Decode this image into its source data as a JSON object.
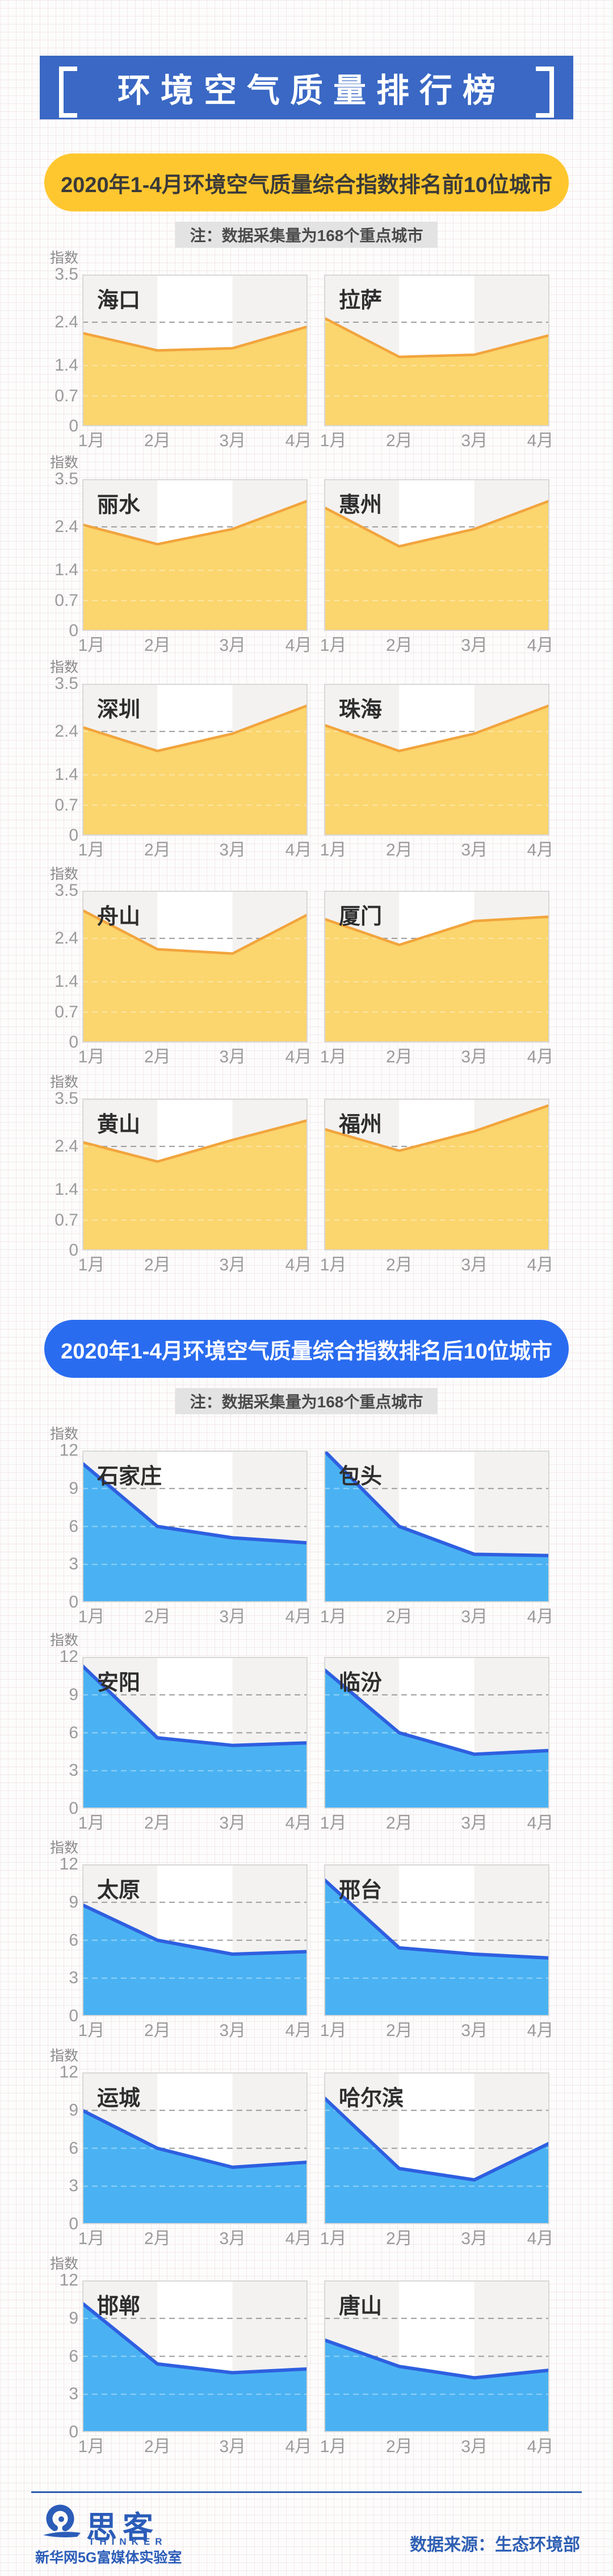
{
  "header": {
    "title": "环境空气质量排行榜"
  },
  "sections": [
    {
      "banner": "2020年1-4月环境空气质量综合指数排名前10位城市",
      "note": "注：数据采集量为168个重点城市",
      "theme": {
        "pill_bg": "#FFC72F",
        "pill_fg": "#3A3A3A",
        "area": "#FBD56D",
        "line": "#F2A43D"
      }
    },
    {
      "banner": "2020年1-4月环境空气质量综合指数排名后10位城市",
      "note": "注：数据采集量为168个重点城市",
      "theme": {
        "pill_bg": "#2A6CF0",
        "pill_fg": "#FFFFFF",
        "area": "#4AB2F2",
        "line": "#2E5FE0"
      }
    }
  ],
  "chart_data": {
    "type": "area",
    "months": [
      "1月",
      "2月",
      "3月",
      "4月"
    ],
    "sections": [
      {
        "name": "排名前10位城市",
        "ylabel": "指数",
        "ylim": [
          0,
          3.5
        ],
        "yticks": [
          "3.5",
          "2.4",
          "1.4",
          "0.7",
          "0"
        ],
        "grid_values": [
          2.4,
          1.4,
          0.7
        ],
        "series": [
          {
            "city": "海口",
            "values": [
              2.15,
              1.75,
              1.8,
              2.3
            ]
          },
          {
            "city": "拉萨",
            "values": [
              2.5,
              1.6,
              1.65,
              2.1
            ]
          },
          {
            "city": "丽水",
            "values": [
              2.45,
              2.0,
              2.35,
              3.0
            ]
          },
          {
            "city": "惠州",
            "values": [
              2.85,
              1.95,
              2.35,
              3.0
            ]
          },
          {
            "city": "深圳",
            "values": [
              2.5,
              1.95,
              2.35,
              3.0
            ]
          },
          {
            "city": "珠海",
            "values": [
              2.55,
              1.95,
              2.35,
              3.0
            ]
          },
          {
            "city": "舟山",
            "values": [
              3.05,
              2.15,
              2.05,
              2.95
            ]
          },
          {
            "city": "厦门",
            "values": [
              2.85,
              2.25,
              2.8,
              2.9
            ]
          },
          {
            "city": "黄山",
            "values": [
              2.5,
              2.05,
              2.55,
              3.0
            ]
          },
          {
            "city": "福州",
            "values": [
              2.8,
              2.3,
              2.75,
              3.35
            ]
          }
        ]
      },
      {
        "name": "排名后10位城市",
        "ylabel": "指数",
        "ylim": [
          0,
          12
        ],
        "yticks": [
          "12",
          "9",
          "6",
          "3",
          "0"
        ],
        "grid_values": [
          9,
          6,
          3
        ],
        "series": [
          {
            "city": "石家庄",
            "values": [
              11.0,
              6.0,
              5.1,
              4.7
            ]
          },
          {
            "city": "包头",
            "values": [
              12.0,
              6.0,
              3.8,
              3.7
            ]
          },
          {
            "city": "安阳",
            "values": [
              11.3,
              5.6,
              5.0,
              5.2
            ]
          },
          {
            "city": "临汾",
            "values": [
              11.0,
              6.0,
              4.3,
              4.6
            ]
          },
          {
            "city": "太原",
            "values": [
              8.8,
              6.0,
              4.9,
              5.1
            ]
          },
          {
            "city": "邢台",
            "values": [
              10.8,
              5.4,
              4.9,
              4.6
            ]
          },
          {
            "city": "运城",
            "values": [
              9.0,
              6.0,
              4.5,
              4.9
            ]
          },
          {
            "city": "哈尔滨",
            "values": [
              10.0,
              4.4,
              3.5,
              6.4
            ]
          },
          {
            "city": "邯郸",
            "values": [
              10.2,
              5.4,
              4.7,
              5.0
            ]
          },
          {
            "city": "唐山",
            "values": [
              7.3,
              5.2,
              4.3,
              4.9
            ]
          }
        ]
      }
    ]
  },
  "footer": {
    "logo_text": "思客",
    "logo_subtext": "THINKER",
    "logo_caption": "新华网5G富媒体实验室",
    "source": "数据来源：生态环境部"
  }
}
